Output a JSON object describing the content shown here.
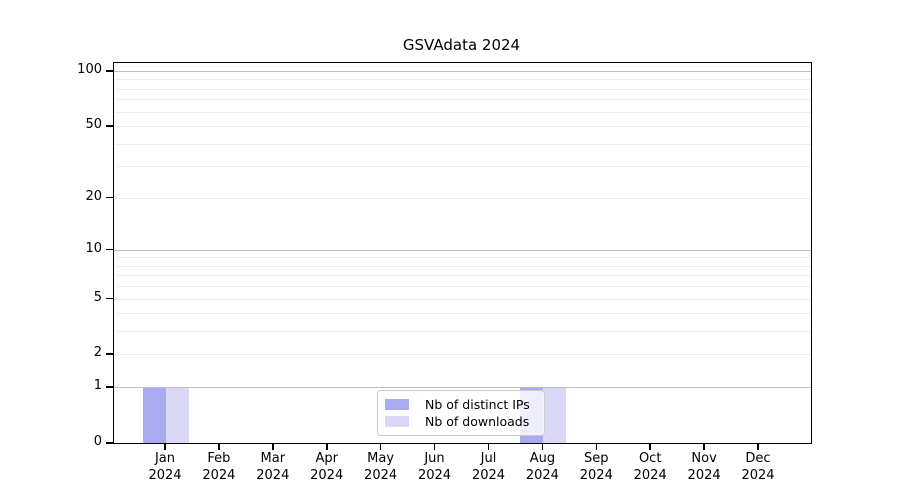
{
  "title": "GSVAdata 2024",
  "legend": {
    "items": [
      {
        "label": "Nb of distinct IPs",
        "color": "#aaaaf0"
      },
      {
        "label": "Nb of downloads",
        "color": "#d9d9f7"
      }
    ],
    "position": "bottom-center"
  },
  "chart_data": {
    "type": "bar",
    "title": "GSVAdata 2024",
    "categories": [
      "Jan",
      "Feb",
      "Mar",
      "Apr",
      "May",
      "Jun",
      "Jul",
      "Aug",
      "Sep",
      "Oct",
      "Nov",
      "Dec"
    ],
    "x_secondary_label": "2024",
    "series": [
      {
        "name": "Nb of distinct IPs",
        "color": "#aaaaf0",
        "values": [
          1,
          0,
          0,
          0,
          0,
          0,
          0,
          1,
          0,
          0,
          0,
          0
        ]
      },
      {
        "name": "Nb of downloads",
        "color": "#d9d9f7",
        "values": [
          1,
          0,
          0,
          0,
          0,
          0,
          0,
          1,
          0,
          0,
          0,
          0
        ]
      }
    ],
    "y_axis": {
      "scale": "log1p",
      "range": [
        0,
        100
      ],
      "ticks": [
        0,
        1,
        2,
        5,
        10,
        20,
        50,
        100
      ],
      "major_gridlines": [
        1,
        10,
        100
      ],
      "minor_gridlines": [
        2,
        3,
        4,
        5,
        6,
        7,
        8,
        9,
        20,
        30,
        40,
        50,
        60,
        70,
        80,
        90
      ]
    },
    "grid": true,
    "legend_position": "bottom-center",
    "colors": {
      "bar_distinct_ips": "#aaaaf0",
      "bar_downloads": "#d9d9f7"
    }
  }
}
